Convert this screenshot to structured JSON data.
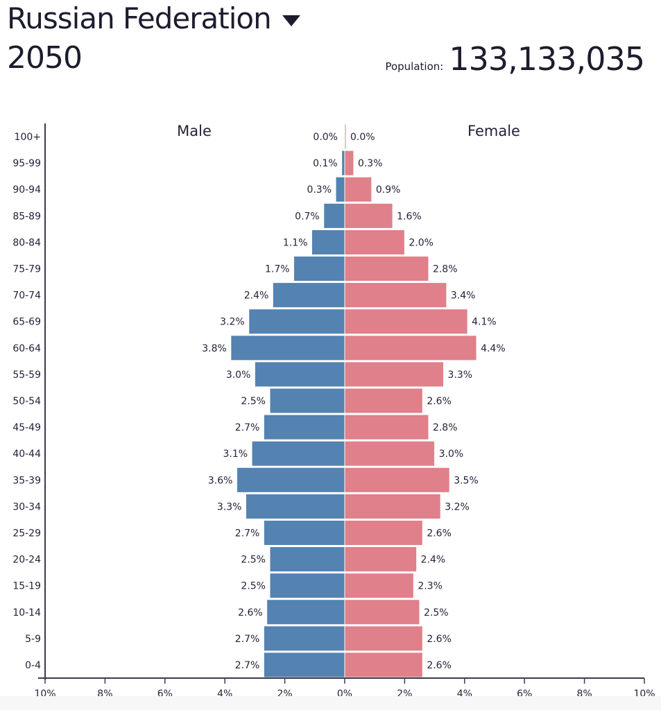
{
  "header": {
    "country": "Russian Federation",
    "year": "2050",
    "population_label": "Population:",
    "population_value": "133,133,035"
  },
  "colors": {
    "male": "#5482b1",
    "female": "#e0808a",
    "axis": "#3a3a50"
  },
  "chart_data": {
    "type": "bar",
    "orientation": "horizontal-pyramid",
    "categories": [
      "100+",
      "95-99",
      "90-94",
      "85-89",
      "80-84",
      "75-79",
      "70-74",
      "65-69",
      "60-64",
      "55-59",
      "50-54",
      "45-49",
      "40-44",
      "35-39",
      "30-34",
      "25-29",
      "20-24",
      "15-19",
      "10-14",
      "5-9",
      "0-4"
    ],
    "series": [
      {
        "name": "Male",
        "values": [
          0.0,
          0.1,
          0.3,
          0.7,
          1.1,
          1.7,
          2.4,
          3.2,
          3.8,
          3.0,
          2.5,
          2.7,
          3.1,
          3.6,
          3.3,
          2.7,
          2.5,
          2.5,
          2.6,
          2.7,
          2.7
        ]
      },
      {
        "name": "Female",
        "values": [
          0.0,
          0.3,
          0.9,
          1.6,
          2.0,
          2.8,
          3.4,
          4.1,
          4.4,
          3.3,
          2.6,
          2.8,
          3.0,
          3.5,
          3.2,
          2.6,
          2.4,
          2.3,
          2.5,
          2.6,
          2.6
        ]
      }
    ],
    "xlim": [
      -10,
      10
    ],
    "xticks": [
      "10%",
      "8%",
      "6%",
      "4%",
      "2%",
      "0%",
      "2%",
      "4%",
      "6%",
      "8%",
      "10%"
    ],
    "unit": "%",
    "title": "",
    "xlabel": "",
    "ylabel": ""
  }
}
